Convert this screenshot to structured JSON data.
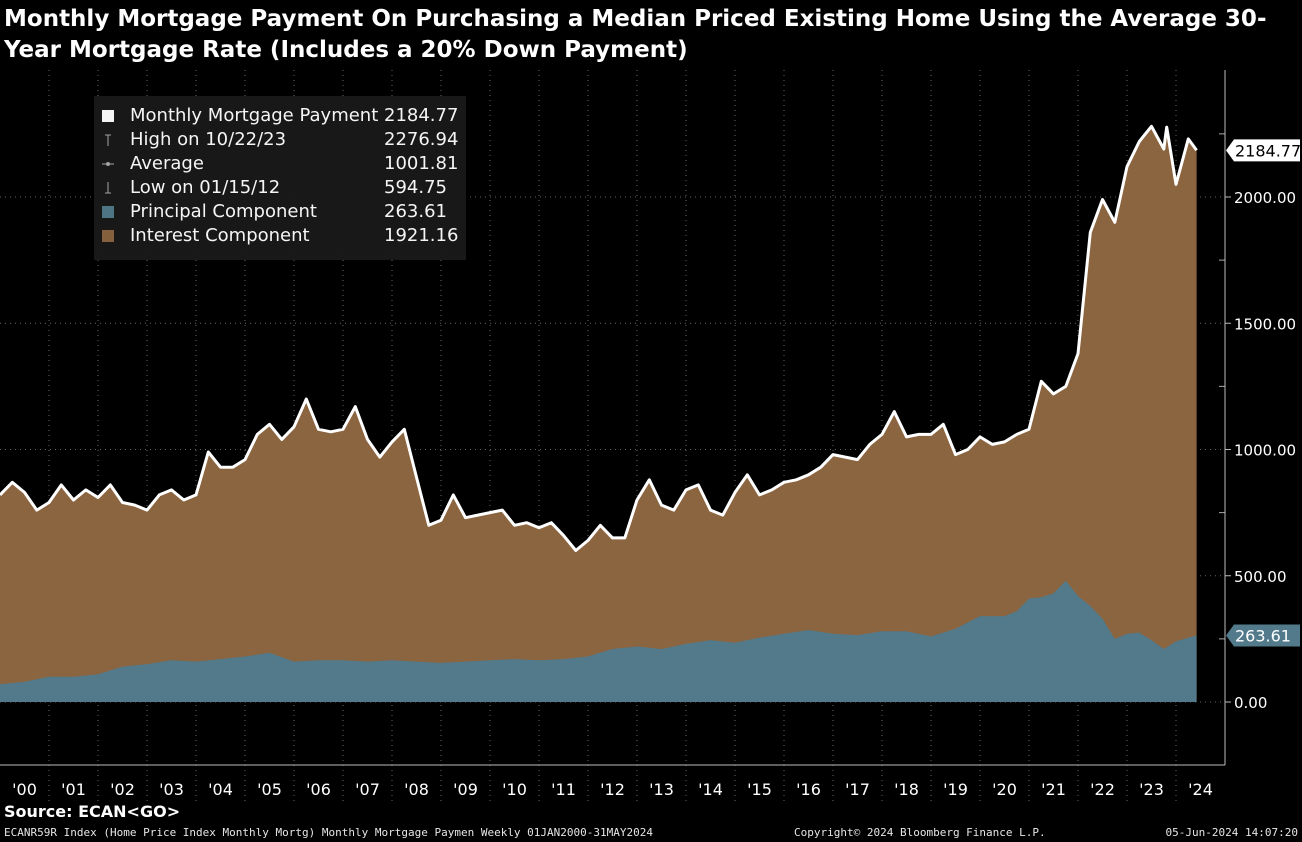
{
  "title": "Monthly Mortgage Payment On Purchasing a Median Priced Existing Home Using the Average 30-Year Mortgage Rate (Includes a 20% Down Payment)",
  "source": "Source: ECAN<GO>",
  "footer": {
    "left": "ECANR59R Index (Home Price Index Monthly Mortg) Monthly Mortgage Paymen  Weekly 01JAN2000-31MAY2024",
    "center": "Copyright© 2024 Bloomberg Finance L.P.",
    "right": "05-Jun-2024 14:07:20"
  },
  "legend": [
    {
      "label": "Monthly Mortgage Payment",
      "value": "2184.77"
    },
    {
      "label": "High on 10/22/23",
      "value": "2276.94"
    },
    {
      "label": "Average",
      "value": "1001.81"
    },
    {
      "label": "Low on 01/15/12",
      "value": "594.75"
    },
    {
      "label": "Principal Component",
      "value": "263.61"
    },
    {
      "label": "Interest Component",
      "value": "1921.16"
    }
  ],
  "colors": {
    "principal": "#527a8a",
    "interest": "#8b6440",
    "line": "#ffffff",
    "background": "#000000",
    "legend_bg": "#1a1a1a"
  },
  "chart_data": {
    "type": "area",
    "ylim": [
      -230,
      2520
    ],
    "xlim": [
      2000.0,
      2024.5
    ],
    "y_ticks": [
      0,
      500,
      1000,
      1500,
      2000
    ],
    "y_tick_labels": [
      "0.00",
      "500.00",
      "1000.00",
      "1500.00",
      "2000.00"
    ],
    "x_ticks": [
      2000,
      2001,
      2002,
      2003,
      2004,
      2005,
      2006,
      2007,
      2008,
      2009,
      2010,
      2011,
      2012,
      2013,
      2014,
      2015,
      2016,
      2017,
      2018,
      2019,
      2020,
      2021,
      2022,
      2023,
      2024
    ],
    "x_tick_labels": [
      "'00",
      "'01",
      "'02",
      "'03",
      "'04",
      "'05",
      "'06",
      "'07",
      "'08",
      "'09",
      "'10",
      "'11",
      "'12",
      "'13",
      "'14",
      "'15",
      "'16",
      "'17",
      "'18",
      "'19",
      "'20",
      "'21",
      "'22",
      "'23",
      "'24"
    ],
    "grid": true,
    "legend_position": "top-left",
    "last_value_labels": {
      "total": "2184.77",
      "principal": "263.61"
    },
    "series": [
      {
        "name": "Monthly Mortgage Payment",
        "x": [
          2000.0,
          2000.25,
          2000.5,
          2000.75,
          2001.0,
          2001.25,
          2001.5,
          2001.75,
          2002.0,
          2002.25,
          2002.5,
          2002.75,
          2003.0,
          2003.25,
          2003.5,
          2003.75,
          2004.0,
          2004.25,
          2004.5,
          2004.75,
          2005.0,
          2005.25,
          2005.5,
          2005.75,
          2006.0,
          2006.25,
          2006.5,
          2006.75,
          2007.0,
          2007.25,
          2007.5,
          2007.75,
          2008.0,
          2008.25,
          2008.5,
          2008.75,
          2009.0,
          2009.25,
          2009.5,
          2009.75,
          2010.0,
          2010.25,
          2010.5,
          2010.75,
          2011.0,
          2011.25,
          2011.5,
          2011.75,
          2012.0,
          2012.25,
          2012.5,
          2012.75,
          2013.0,
          2013.25,
          2013.5,
          2013.75,
          2014.0,
          2014.25,
          2014.5,
          2014.75,
          2015.0,
          2015.25,
          2015.5,
          2015.75,
          2016.0,
          2016.25,
          2016.5,
          2016.75,
          2017.0,
          2017.25,
          2017.5,
          2017.75,
          2018.0,
          2018.25,
          2018.5,
          2018.75,
          2019.0,
          2019.25,
          2019.5,
          2019.75,
          2020.0,
          2020.25,
          2020.5,
          2020.75,
          2021.0,
          2021.25,
          2021.5,
          2021.75,
          2022.0,
          2022.25,
          2022.5,
          2022.75,
          2023.0,
          2023.25,
          2023.5,
          2023.75,
          2023.81,
          2024.0,
          2024.25,
          2024.42
        ],
        "values": [
          820,
          870,
          830,
          760,
          790,
          860,
          800,
          840,
          810,
          860,
          790,
          780,
          760,
          820,
          840,
          800,
          820,
          990,
          930,
          930,
          960,
          1060,
          1100,
          1040,
          1090,
          1200,
          1080,
          1070,
          1080,
          1170,
          1040,
          970,
          1030,
          1080,
          890,
          700,
          720,
          820,
          730,
          740,
          750,
          760,
          700,
          710,
          690,
          710,
          660,
          600,
          640,
          700,
          650,
          650,
          800,
          880,
          780,
          760,
          840,
          860,
          760,
          740,
          830,
          900,
          820,
          840,
          870,
          880,
          900,
          930,
          980,
          970,
          960,
          1020,
          1060,
          1150,
          1050,
          1060,
          1060,
          1100,
          980,
          1000,
          1050,
          1020,
          1030,
          1060,
          1080,
          1270,
          1220,
          1250,
          1380,
          1860,
          1990,
          1900,
          2120,
          2220,
          2280,
          2190,
          2276.94,
          2050,
          2230,
          2184.77
        ]
      },
      {
        "name": "Principal Component",
        "x": [
          2000.0,
          2000.5,
          2001.0,
          2001.5,
          2002.0,
          2002.5,
          2003.0,
          2003.5,
          2004.0,
          2004.5,
          2005.0,
          2005.5,
          2006.0,
          2006.5,
          2007.0,
          2007.5,
          2008.0,
          2008.5,
          2009.0,
          2009.5,
          2010.0,
          2010.5,
          2011.0,
          2011.5,
          2012.0,
          2012.5,
          2013.0,
          2013.5,
          2014.0,
          2014.5,
          2015.0,
          2015.5,
          2016.0,
          2016.5,
          2017.0,
          2017.5,
          2018.0,
          2018.5,
          2019.0,
          2019.5,
          2020.0,
          2020.5,
          2020.75,
          2021.0,
          2021.25,
          2021.5,
          2021.75,
          2022.0,
          2022.25,
          2022.5,
          2022.75,
          2023.0,
          2023.25,
          2023.5,
          2023.75,
          2024.0,
          2024.42
        ],
        "values": [
          70,
          80,
          100,
          100,
          110,
          140,
          150,
          165,
          160,
          170,
          180,
          195,
          160,
          165,
          165,
          160,
          165,
          160,
          155,
          160,
          165,
          170,
          165,
          170,
          180,
          210,
          220,
          210,
          230,
          245,
          235,
          255,
          270,
          285,
          270,
          265,
          280,
          280,
          260,
          290,
          340,
          340,
          360,
          410,
          415,
          430,
          480,
          420,
          380,
          330,
          250,
          270,
          275,
          245,
          210,
          240,
          263.61
        ]
      }
    ]
  }
}
